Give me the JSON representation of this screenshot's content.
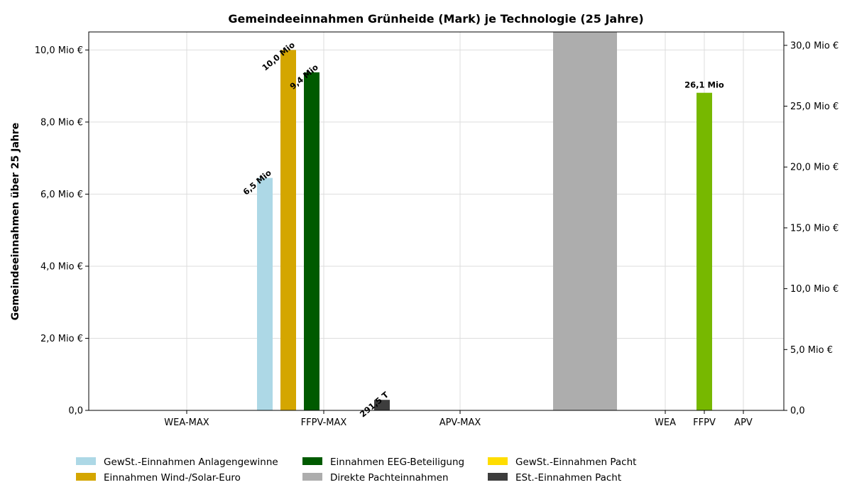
{
  "chart_data": {
    "type": "bar",
    "title": "Gemeindeeinnahmen Grünheide (Mark) je Technologie (25 Jahre)",
    "ylabel": "Gemeindeeinnahmen über 25 Jahre",
    "left_axis": {
      "ylim": [
        0,
        10.5
      ],
      "ticks": [
        0,
        2,
        4,
        6,
        8,
        10
      ],
      "tick_labels": [
        "0,0",
        "2,0 Mio €",
        "4,0 Mio €",
        "6,0 Mio €",
        "8,0 Mio €",
        "10,0 Mio €"
      ]
    },
    "right_axis": {
      "ylim": [
        0,
        31.1
      ],
      "ticks": [
        0,
        5,
        10,
        15,
        20,
        25,
        30
      ],
      "tick_labels": [
        "0,0",
        "5,0 Mio €",
        "10,0 Mio €",
        "15,0 Mio €",
        "20,0 Mio €",
        "25,0 Mio €",
        "30,0 Mio €"
      ]
    },
    "grid": true,
    "legend_position": "bottom",
    "categories_left": [
      "WEA-MAX",
      "FFPV-MAX",
      "APV-MAX"
    ],
    "categories_right": [
      "WEA",
      "FFPV",
      "APV"
    ],
    "series": [
      {
        "name": "GewSt.-Einnahmen Anlagengewinne",
        "color": "#add8e6",
        "category": "FFPV-MAX",
        "axis": "left",
        "value": 6.45,
        "label": "6,5 Mio"
      },
      {
        "name": "Einnahmen Wind-/Solar-Euro",
        "color": "#d4a600",
        "category": "FFPV-MAX",
        "axis": "left",
        "value": 10.0,
        "label": "10,0 Mio"
      },
      {
        "name": "Einnahmen EEG-Beteiligung",
        "color": "#005a00",
        "category": "FFPV-MAX",
        "axis": "left",
        "value": 9.38,
        "label": "9,4 Mio"
      },
      {
        "name": "Direkte Pachteinnahmen",
        "color": "#adadad",
        "category": "",
        "axis": "left",
        "value": 10.5,
        "label": ""
      },
      {
        "name": "GewSt.-Einnahmen Pacht",
        "color": "#ffdd00",
        "category": "",
        "axis": "left",
        "value": 0,
        "label": ""
      },
      {
        "name": "ESt.-Einnahmen Pacht",
        "color": "#3d3d3d",
        "category": "FFPV-MAX",
        "axis": "left",
        "value": 0.2915,
        "label": "291,5 T"
      },
      {
        "name": "",
        "color": "#77b800",
        "category": "FFPV",
        "axis": "right",
        "value": 26.1,
        "label": "26,1 Mio"
      }
    ]
  }
}
